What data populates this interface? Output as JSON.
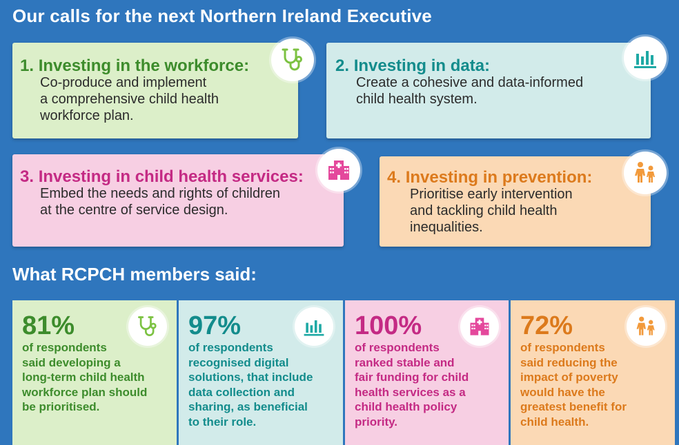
{
  "header": {
    "title": "Our calls for the next Northern Ireland Executive"
  },
  "calls": [
    {
      "num": "1.",
      "heading": "Investing in the workforce:",
      "body": "Co-produce and implement\na comprehensive child health\nworkforce plan.",
      "icon": "stethoscope-icon"
    },
    {
      "num": "2.",
      "heading": "Investing in data:",
      "body": "Create a cohesive and data-informed\nchild health system.",
      "icon": "bar-chart-icon"
    },
    {
      "num": "3.",
      "heading": "Investing in child health services:",
      "body": "Embed the needs and rights of children\nat the centre of service design.",
      "icon": "hospital-icon"
    },
    {
      "num": "4.",
      "heading": "Investing in prevention:",
      "body": "Prioritise early intervention\nand tackling child health\ninequalities.",
      "icon": "family-icon"
    }
  ],
  "members": {
    "title": "What RCPCH members said:",
    "stats": [
      {
        "pct": "81%",
        "text": "of respondents\nsaid developing a\nlong-term child health\nworkforce plan should\nbe prioritised.",
        "icon": "stethoscope-icon"
      },
      {
        "pct": "97%",
        "text": "of respondents\nrecognised digital\nsolutions, that include\ndata collection and\nsharing, as beneficial\nto their role.",
        "icon": "bar-chart-icon"
      },
      {
        "pct": "100%",
        "text": "of respondents\nranked stable and\nfair funding for child\nhealth services as a\nchild health policy\npriority.",
        "icon": "hospital-icon"
      },
      {
        "pct": "72%",
        "text": "of respondents\nsaid reducing the\nimpact of poverty\nwould have the\ngreatest benefit for\nchild health.",
        "icon": "family-icon"
      }
    ]
  },
  "colors": {
    "background": "#2f76bd",
    "green_card": "#dcefc9",
    "green_text": "#3d8c2c",
    "green_icon": "#7cc242",
    "teal_card": "#d2ebea",
    "teal_text": "#138c8c",
    "teal_icon": "#1fa9a5",
    "pink_card": "#f7cfe3",
    "pink_text": "#c42a84",
    "pink_icon": "#e4489c",
    "orange_card": "#fbd9b5",
    "orange_text": "#dc7a1c",
    "orange_icon": "#f29a3b"
  }
}
